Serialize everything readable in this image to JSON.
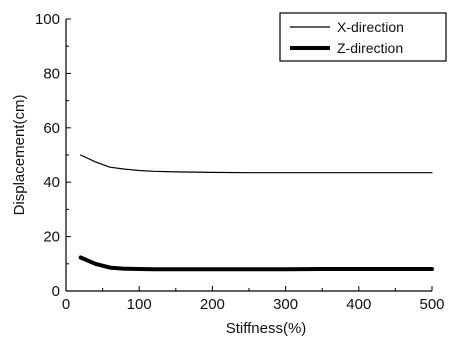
{
  "chart_data": {
    "type": "line",
    "title": "",
    "xlabel": "Stiffness(%)",
    "ylabel": "Displacement(cm)",
    "xlim": [
      0,
      500
    ],
    "ylim": [
      0,
      100
    ],
    "x_ticks": [
      0,
      100,
      200,
      300,
      400,
      500
    ],
    "y_ticks": [
      0,
      20,
      40,
      60,
      80,
      100
    ],
    "grid": false,
    "legend_position": "top-right",
    "series": [
      {
        "name": "X-direction",
        "color": "#000000",
        "style": "thin",
        "x": [
          20,
          40,
          60,
          80,
          100,
          120,
          150,
          200,
          250,
          300,
          350,
          400,
          450,
          500
        ],
        "y": [
          50,
          47.5,
          45.5,
          44.8,
          44.3,
          44.0,
          43.8,
          43.6,
          43.5,
          43.5,
          43.5,
          43.5,
          43.5,
          43.5
        ]
      },
      {
        "name": "Z-direction",
        "color": "#000000",
        "style": "thick",
        "x": [
          20,
          40,
          60,
          80,
          100,
          120,
          150,
          200,
          250,
          300,
          350,
          400,
          450,
          500
        ],
        "y": [
          12.3,
          10.0,
          8.6,
          8.2,
          8.1,
          8.0,
          8.0,
          8.0,
          8.0,
          8.0,
          8.1,
          8.1,
          8.1,
          8.1
        ]
      }
    ]
  }
}
